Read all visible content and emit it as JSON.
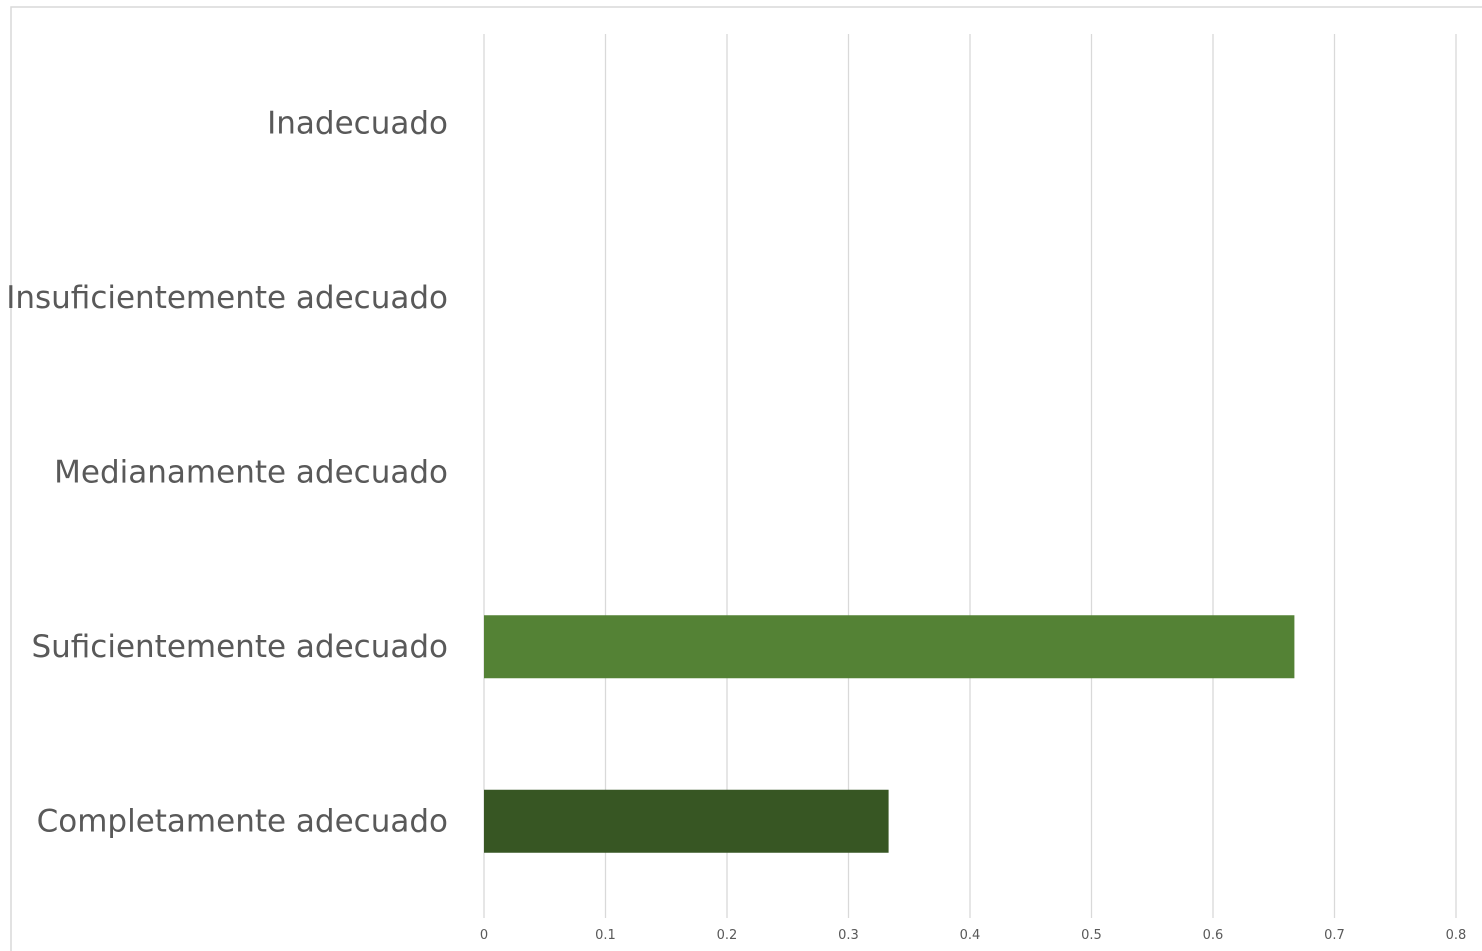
{
  "chart_data": {
    "type": "bar",
    "orientation": "horizontal",
    "title": "",
    "xlabel": "",
    "ylabel": "",
    "categories": [
      "Inadecuado",
      "Insuficientemente adecuado",
      "Medianamente adecuado",
      "Suficientemente adecuado",
      "Completamente adecuado"
    ],
    "values": [
      0,
      0,
      0,
      0.667,
      0.333
    ],
    "bar_colors": [
      "#548235",
      "#548235",
      "#548235",
      "#548235",
      "#375623"
    ],
    "xlim": [
      0,
      0.8
    ],
    "xticks": [
      0,
      0.1,
      0.2,
      0.3,
      0.4,
      0.5,
      0.6,
      0.7,
      0.8
    ],
    "xtick_labels": [
      "0",
      "0.1",
      "0.2",
      "0.3",
      "0.4",
      "0.5",
      "0.6",
      "0.7",
      "0.8"
    ],
    "grid": "vertical",
    "legend": "none"
  }
}
